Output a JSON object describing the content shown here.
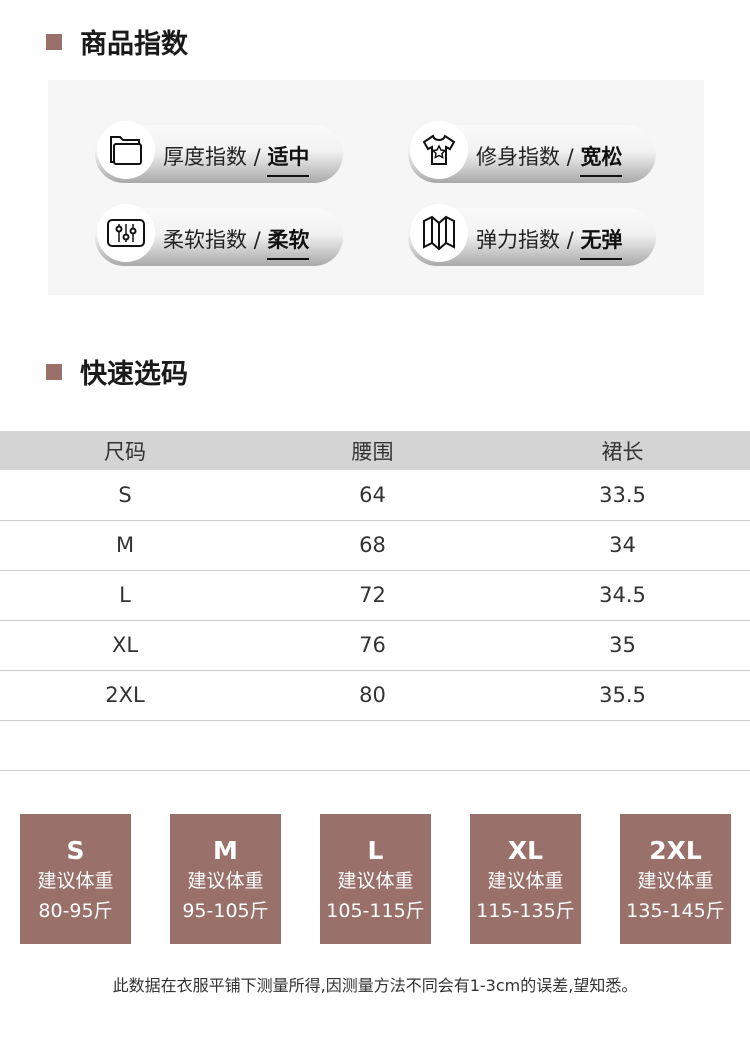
{
  "index_section": {
    "title": "商品指数",
    "items": [
      {
        "icon": "folder-icon",
        "label": "厚度指数 / ",
        "value": "适中"
      },
      {
        "icon": "tshirt-star-icon",
        "label": "修身指数 / ",
        "value": "宽松"
      },
      {
        "icon": "sliders-icon",
        "label": "柔软指数 / ",
        "value": "柔软"
      },
      {
        "icon": "folded-map-icon",
        "label": "弹力指数 / ",
        "value": "无弹"
      }
    ]
  },
  "size_section": {
    "title": "快速选码",
    "headers": [
      "尺码",
      "腰围",
      "裙长"
    ],
    "rows": [
      [
        "S",
        "64",
        "33.5"
      ],
      [
        "M",
        "68",
        "34"
      ],
      [
        "L",
        "72",
        "34.5"
      ],
      [
        "XL",
        "76",
        "35"
      ],
      [
        "2XL",
        "80",
        "35.5"
      ]
    ]
  },
  "weights": [
    {
      "size": "S",
      "label": "建议体重",
      "range": "80-95斤"
    },
    {
      "size": "M",
      "label": "建议体重",
      "range": "95-105斤"
    },
    {
      "size": "L",
      "label": "建议体重",
      "range": "105-115斤"
    },
    {
      "size": "XL",
      "label": "建议体重",
      "range": "115-135斤"
    },
    {
      "size": "2XL",
      "label": "建议体重",
      "range": "135-145斤"
    }
  ],
  "note": "此数据在衣服平铺下测量所得,因测量方法不同会有1-3cm的误差,望知悉。",
  "colors": {
    "accent": "#99716a",
    "header_bg": "#d4d4d4"
  }
}
